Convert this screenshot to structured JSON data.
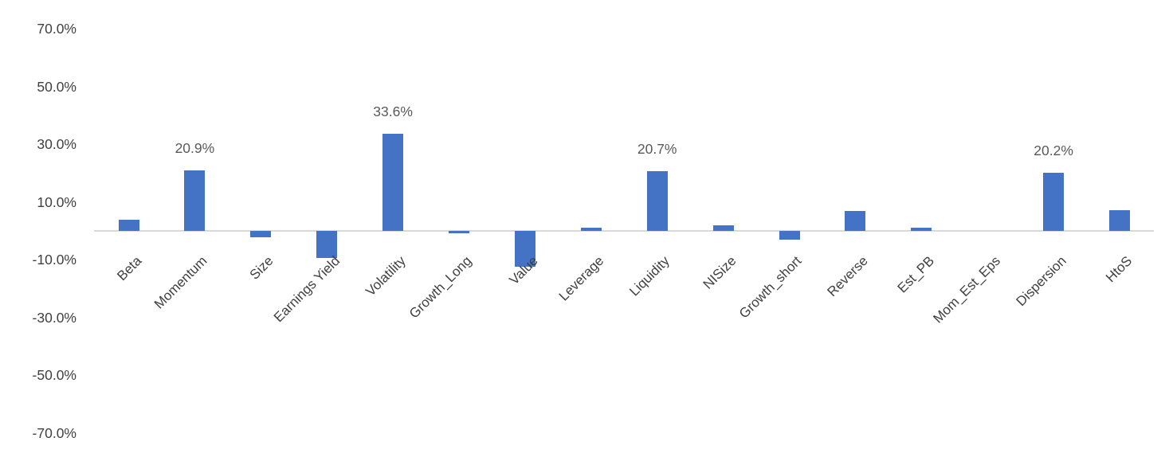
{
  "chart_data": {
    "type": "bar",
    "title": "",
    "xlabel": "",
    "ylabel": "",
    "categories": [
      "Beta",
      "Momentum",
      "Size",
      "Earnings Yield",
      "Volatility",
      "Growth_Long",
      "Value",
      "Leverage",
      "Liquidity",
      "NISize",
      "Growth_short",
      "Reverse",
      "Est_PB",
      "Mom_Est_Eps",
      "Dispersion",
      "HtoS"
    ],
    "values": [
      4.0,
      20.9,
      -2.2,
      -9.4,
      33.6,
      -0.7,
      -12.4,
      1.1,
      20.7,
      2.0,
      -3.1,
      7.0,
      1.2,
      0.0,
      20.2,
      7.3
    ],
    "data_labels": [
      "",
      "20.9%",
      "",
      "",
      "33.6%",
      "",
      "",
      "",
      "20.7%",
      "",
      "",
      "",
      "",
      "",
      "20.2%",
      ""
    ],
    "y_ticks": [
      {
        "label": "70.0%",
        "value": 70
      },
      {
        "label": "50.0%",
        "value": 50
      },
      {
        "label": "30.0%",
        "value": 30
      },
      {
        "label": "10.0%",
        "value": 10
      },
      {
        "label": "-10.0%",
        "value": -10
      },
      {
        "label": "-30.0%",
        "value": -30
      },
      {
        "label": "-50.0%",
        "value": -50
      },
      {
        "label": "-70.0%",
        "value": -70
      }
    ],
    "ylim": [
      -80,
      80
    ],
    "grid": false,
    "legend": "none",
    "colors": {
      "bar": "#4472c4",
      "tick_text": "#404040",
      "category_text": "#404040",
      "data_label_text": "#595959",
      "axis_line": "#d9d9d9",
      "background": "#ffffff"
    }
  }
}
